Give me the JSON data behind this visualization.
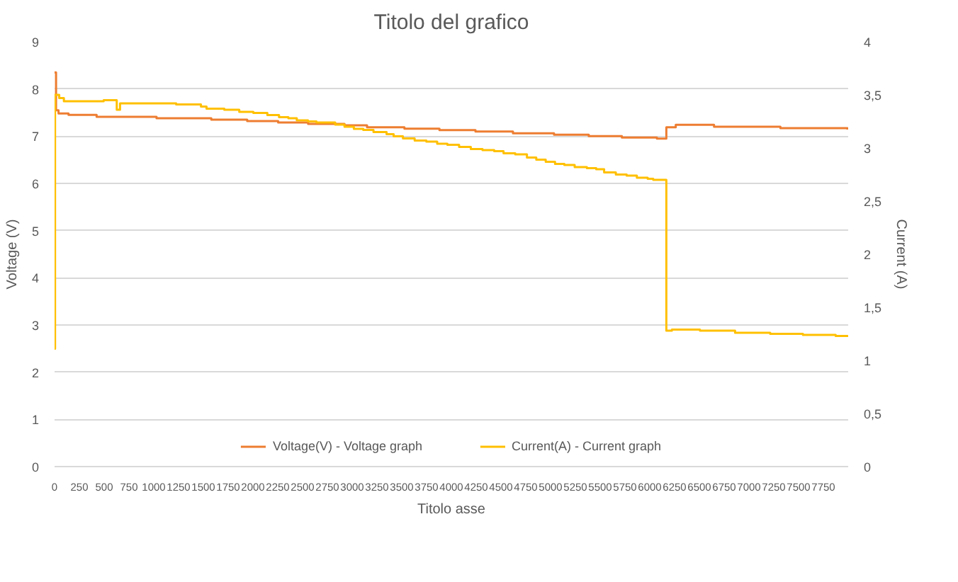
{
  "chart_data": {
    "type": "step",
    "title": "Titolo del grafico",
    "xlabel": "Titolo asse",
    "ylabel": "Voltage (V)",
    "y2label": "Current (A)",
    "xlim": [
      0,
      8000
    ],
    "xticks": [
      0,
      250,
      500,
      750,
      1000,
      1250,
      1500,
      1750,
      2000,
      2250,
      2500,
      2750,
      3000,
      3250,
      3500,
      3750,
      4000,
      4250,
      4500,
      4750,
      5000,
      5250,
      5500,
      5750,
      6000,
      6250,
      6500,
      6750,
      7000,
      7250,
      7500,
      7750
    ],
    "ylim": [
      0,
      9
    ],
    "yticks": [
      0,
      1,
      2,
      3,
      4,
      5,
      6,
      7,
      8,
      9
    ],
    "y2lim": [
      0,
      4
    ],
    "y2ticks": [
      0,
      {
        "value": 0.5,
        "label": "0,5"
      },
      1,
      {
        "value": 1.5,
        "label": "1,5"
      },
      2,
      {
        "value": 2.5,
        "label": "2,5"
      },
      3,
      {
        "value": 3.5,
        "label": "3,5"
      },
      4
    ],
    "grid": "y",
    "legend": "bottom",
    "marker": "none",
    "line_style": "solid",
    "series": [
      {
        "name": "Voltage(V) - Voltage graph",
        "color": "#ed7d31",
        "x": [
          0,
          15,
          40,
          141,
          424,
          1028,
          1580,
          1942,
          2254,
          2556,
          2923,
          3150,
          3527,
          3880,
          4243,
          4621,
          5035,
          5385,
          5719,
          6072,
          6167,
          6262,
          6648,
          7317,
          7992
        ],
        "values": [
          8.35,
          7.55,
          7.48,
          7.45,
          7.41,
          7.38,
          7.35,
          7.32,
          7.29,
          7.26,
          7.23,
          7.19,
          7.16,
          7.13,
          7.1,
          7.06,
          7.03,
          7.0,
          6.97,
          6.95,
          7.19,
          7.24,
          7.2,
          7.17,
          7.14
        ]
      },
      {
        "name": "Current(A) - Current graph",
        "color": "#ffc000",
        "axis": "y2",
        "x": [
          0,
          5,
          47,
          94,
          495,
          627,
          660,
          1226,
          1476,
          1532,
          1711,
          1862,
          2004,
          2145,
          2263,
          2357,
          2442,
          2555,
          2640,
          2829,
          2923,
          3017,
          3112,
          3215,
          3347,
          3418,
          3512,
          3630,
          3748,
          3857,
          3960,
          4078,
          4196,
          4314,
          4432,
          4526,
          4644,
          4762,
          4856,
          4951,
          5045,
          5139,
          5243,
          5366,
          5460,
          5540,
          5658,
          5767,
          5870,
          5979,
          6035,
          6167,
          6223,
          6506,
          6860,
          7214,
          7544,
          7874,
          7992
        ],
        "values": [
          1.11,
          3.5,
          3.47,
          3.44,
          3.45,
          3.36,
          3.42,
          3.41,
          3.39,
          3.37,
          3.36,
          3.34,
          3.33,
          3.31,
          3.29,
          3.28,
          3.26,
          3.25,
          3.24,
          3.22,
          3.2,
          3.18,
          3.17,
          3.15,
          3.13,
          3.11,
          3.09,
          3.07,
          3.06,
          3.04,
          3.03,
          3.01,
          2.99,
          2.98,
          2.97,
          2.95,
          2.94,
          2.91,
          2.89,
          2.87,
          2.85,
          2.84,
          2.82,
          2.81,
          2.8,
          2.77,
          2.75,
          2.74,
          2.72,
          2.71,
          2.7,
          1.28,
          1.29,
          1.28,
          1.26,
          1.25,
          1.24,
          1.23,
          1.22
        ]
      }
    ]
  }
}
